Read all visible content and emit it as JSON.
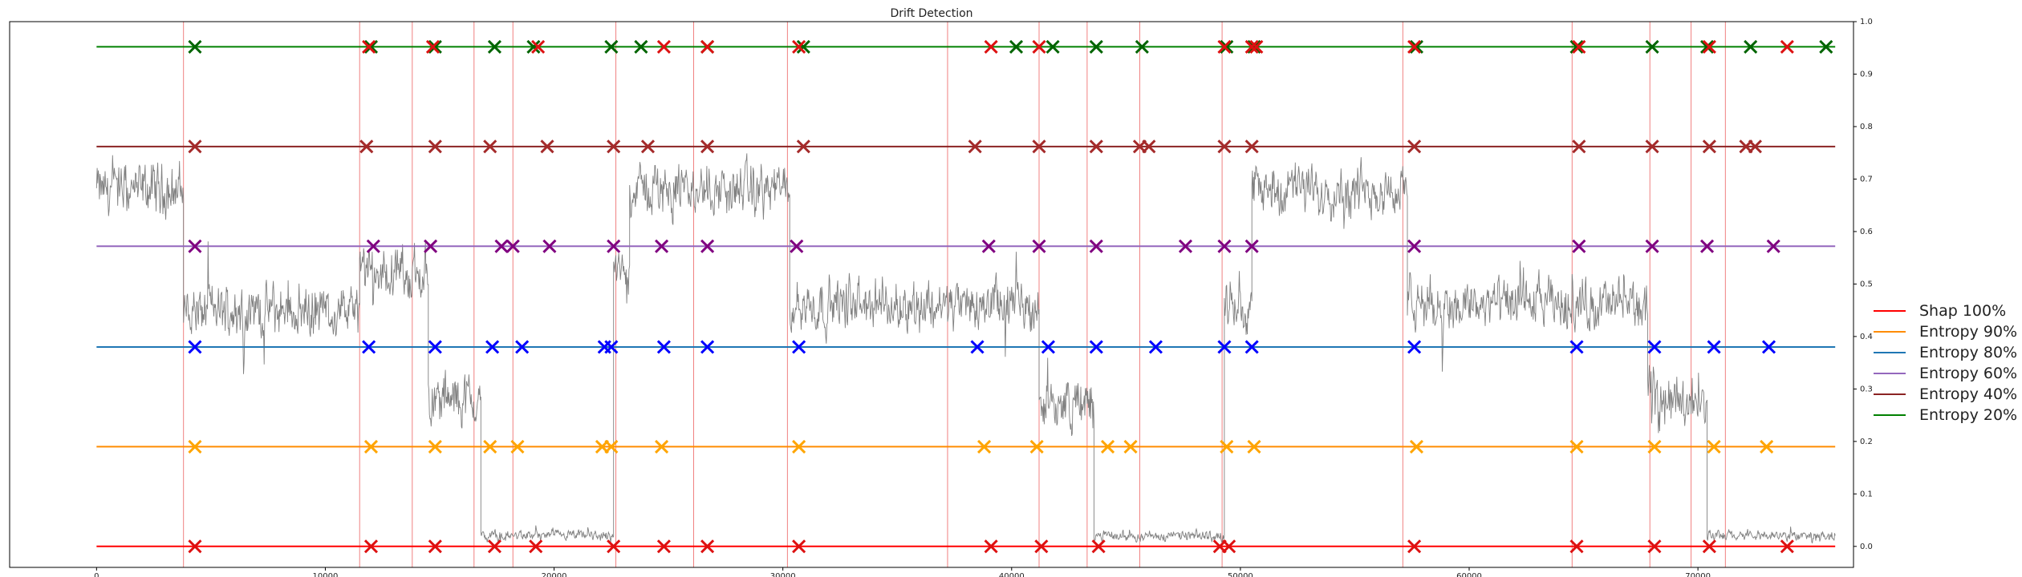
{
  "chart_data": {
    "type": "line",
    "title": "Drift Detection",
    "xlabel": "",
    "ylabel": "",
    "xlim": [
      -3800,
      76800
    ],
    "ylim": [
      -0.04,
      1.0
    ],
    "x_ticks": [
      0,
      10000,
      20000,
      30000,
      40000,
      50000,
      60000,
      70000
    ],
    "x_tick_labels": [
      "0",
      "10000",
      "20000",
      "30000",
      "40000",
      "50000",
      "60000",
      "70000"
    ],
    "y_ticks": [
      0.0,
      0.1,
      0.2,
      0.3,
      0.4,
      0.5,
      0.6,
      0.7,
      0.8,
      0.9,
      1.0
    ],
    "y_tick_labels": [
      "0.0",
      "0.1",
      "0.2",
      "0.3",
      "0.4",
      "0.5",
      "0.6",
      "0.7",
      "0.8",
      "0.9",
      "1.0"
    ],
    "y_axis_side": "right",
    "grid": false,
    "legend_position": "outside-right",
    "drift_lines": [
      3800,
      11500,
      13800,
      16500,
      18200,
      22700,
      26100,
      30200,
      37200,
      41200,
      43300,
      45600,
      49200,
      57100,
      64500,
      67900,
      69700,
      71200
    ],
    "drift_line_color": "#f08080",
    "signal": {
      "color": "#808080",
      "segments": [
        {
          "x_start": 0,
          "x_end": 3800,
          "level": 0.68
        },
        {
          "x_start": 3800,
          "x_end": 11500,
          "level": 0.45
        },
        {
          "x_start": 11500,
          "x_end": 14500,
          "level": 0.52
        },
        {
          "x_start": 14500,
          "x_end": 16800,
          "level": 0.28
        },
        {
          "x_start": 16800,
          "x_end": 22600,
          "level": 0.02
        },
        {
          "x_start": 22600,
          "x_end": 23300,
          "level": 0.52
        },
        {
          "x_start": 23300,
          "x_end": 30300,
          "level": 0.68
        },
        {
          "x_start": 30300,
          "x_end": 41200,
          "level": 0.46
        },
        {
          "x_start": 41200,
          "x_end": 43600,
          "level": 0.27
        },
        {
          "x_start": 43600,
          "x_end": 49300,
          "level": 0.02
        },
        {
          "x_start": 49300,
          "x_end": 50500,
          "level": 0.46
        },
        {
          "x_start": 50500,
          "x_end": 57300,
          "level": 0.68
        },
        {
          "x_start": 57300,
          "x_end": 67800,
          "level": 0.46
        },
        {
          "x_start": 67800,
          "x_end": 70400,
          "level": 0.28
        },
        {
          "x_start": 70400,
          "x_end": 76000,
          "level": 0.02
        }
      ]
    },
    "series": [
      {
        "name": "Shap 100%",
        "color": "#e41a1c",
        "line_color": "#ff0000",
        "marker_color": "#dd1111",
        "y": 0.0,
        "x": [
          4300,
          12000,
          14800,
          17400,
          19200,
          22600,
          24800,
          26700,
          30700,
          39100,
          41300,
          43800,
          49100,
          49500,
          57600,
          64700,
          68100,
          70500,
          73900
        ]
      },
      {
        "name": "Entropy 90%",
        "color": "#ff8c00",
        "line_color": "#ff8c00",
        "marker_color": "#ffa500",
        "y": 0.19,
        "x": [
          4300,
          12000,
          14800,
          17200,
          18400,
          22100,
          22500,
          24700,
          30700,
          38800,
          41100,
          44200,
          45200,
          49400,
          50600,
          57700,
          64700,
          68100,
          70700,
          73000
        ]
      },
      {
        "name": "Entropy 80%",
        "color": "#1f77b4",
        "line_color": "#1f77b4",
        "marker_color": "#0000ff",
        "y": 0.38,
        "x": [
          4300,
          11900,
          14800,
          17300,
          18600,
          22200,
          22500,
          24800,
          26700,
          30700,
          38500,
          41600,
          43700,
          46300,
          49300,
          50500,
          57600,
          64700,
          68100,
          70700,
          73100
        ]
      },
      {
        "name": "Entropy 60%",
        "color": "#9467bd",
        "line_color": "#9467bd",
        "marker_color": "#800080",
        "y": 0.572,
        "x": [
          4300,
          12100,
          14600,
          17700,
          18200,
          19800,
          22600,
          24700,
          26700,
          30600,
          39000,
          41200,
          43700,
          47600,
          49300,
          50500,
          57600,
          64800,
          68000,
          70400,
          73300
        ]
      },
      {
        "name": "Entropy 40%",
        "color": "#8b1a1a",
        "line_color": "#8b2323",
        "marker_color": "#a52a2a",
        "y": 0.762,
        "x": [
          4300,
          11800,
          14800,
          17200,
          19700,
          22600,
          24100,
          26700,
          30900,
          38400,
          41200,
          43700,
          45600,
          46000,
          49300,
          50500,
          57600,
          64800,
          68000,
          70500,
          72100,
          72500
        ]
      },
      {
        "name": "Entropy 20%",
        "color": "#228b22",
        "line_color": "#008000",
        "marker_color": "#006400",
        "y": 0.952,
        "x": [
          4300,
          12000,
          14800,
          17400,
          19100,
          22500,
          23800,
          26700,
          30900,
          40200,
          41800,
          43700,
          45700,
          49400,
          50600,
          57700,
          64700,
          68000,
          70400,
          72300,
          75600
        ]
      },
      {
        "name": "",
        "color": "#dd1111",
        "line_color": "none",
        "marker_color": "#dd1111",
        "y": 0.952,
        "x": [
          11900,
          14700,
          19300,
          24800,
          26700,
          30700,
          39100,
          41200,
          49300,
          50500,
          50700,
          57600,
          64800,
          70500,
          73900
        ]
      }
    ]
  }
}
